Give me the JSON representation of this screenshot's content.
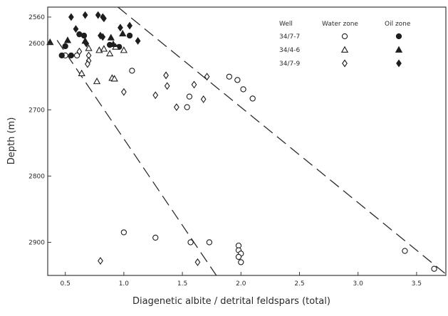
{
  "chart_data": {
    "type": "scatter",
    "xlabel": "Diagenetic albite / detrital feldspars (total)",
    "ylabel": "Depth (m)",
    "xlim": [
      0.35,
      3.75
    ],
    "ylim": [
      2950,
      2545
    ],
    "y_axis_inverted": true,
    "x_ticks": [
      0.5,
      1.0,
      1.5,
      2.0,
      2.5,
      3.0,
      3.5
    ],
    "x_tick_labels": [
      "0.5",
      "1.0",
      "1.5",
      "2.0",
      "2.5",
      "3.0",
      "3.5"
    ],
    "y_ticks": [
      2560,
      2600,
      2700,
      2800,
      2900
    ],
    "y_tick_labels": [
      "2560",
      "2600",
      "2700",
      "2800",
      "2900"
    ],
    "grid": false,
    "legend": {
      "placement": "top-right",
      "well_header": "Well",
      "water_header": "Water zone",
      "oil_header": "Oil zone",
      "rows": [
        {
          "well": "34/7-7",
          "water_marker": "circle-open",
          "oil_marker": "circle-filled"
        },
        {
          "well": "34/4-6",
          "water_marker": "triangle-open",
          "oil_marker": "triangle-filled"
        },
        {
          "well": "34/7-9",
          "water_marker": "diamond-open",
          "oil_marker": "diamond-filled"
        }
      ]
    },
    "series": [
      {
        "well": "34/7-7",
        "zone": "water",
        "marker": "circle-open",
        "points": [
          [
            0.5,
            2618
          ],
          [
            0.6,
            2618
          ],
          [
            1.07,
            2641
          ],
          [
            1.0,
            2885
          ],
          [
            1.27,
            2893
          ],
          [
            1.57,
            2900
          ],
          [
            1.73,
            2900
          ],
          [
            1.98,
            2905
          ],
          [
            1.98,
            2912
          ],
          [
            2.0,
            2917
          ],
          [
            1.98,
            2922
          ],
          [
            2.0,
            2930
          ],
          [
            3.4,
            2913
          ],
          [
            3.65,
            2940
          ],
          [
            1.9,
            2650
          ],
          [
            1.97,
            2655
          ],
          [
            2.02,
            2669
          ],
          [
            2.1,
            2683
          ],
          [
            1.56,
            2680
          ],
          [
            1.54,
            2696
          ]
        ]
      },
      {
        "well": "34/7-7",
        "zone": "oil",
        "marker": "circle-filled",
        "points": [
          [
            0.47,
            2618
          ],
          [
            0.55,
            2618
          ],
          [
            0.62,
            2586
          ],
          [
            0.66,
            2588
          ],
          [
            0.5,
            2604
          ],
          [
            1.05,
            2588
          ],
          [
            0.88,
            2602
          ],
          [
            0.96,
            2605
          ]
        ]
      },
      {
        "well": "34/4-6",
        "zone": "water",
        "marker": "triangle-open",
        "points": [
          [
            0.7,
            2607
          ],
          [
            0.79,
            2610
          ],
          [
            0.83,
            2608
          ],
          [
            0.88,
            2615
          ],
          [
            0.93,
            2605
          ],
          [
            1.0,
            2610
          ],
          [
            0.64,
            2645
          ],
          [
            0.77,
            2657
          ],
          [
            0.9,
            2652
          ],
          [
            0.92,
            2653
          ]
        ]
      },
      {
        "well": "34/4-6",
        "zone": "oil",
        "marker": "triangle-filled",
        "points": [
          [
            0.37,
            2598
          ],
          [
            0.52,
            2595
          ],
          [
            0.67,
            2596
          ],
          [
            0.89,
            2591
          ],
          [
            0.99,
            2585
          ],
          [
            0.91,
            2601
          ]
        ]
      },
      {
        "well": "34/7-9",
        "zone": "water",
        "marker": "diamond-open",
        "points": [
          [
            0.62,
            2612
          ],
          [
            0.7,
            2618
          ],
          [
            0.7,
            2626
          ],
          [
            0.69,
            2631
          ],
          [
            1.0,
            2673
          ],
          [
            1.27,
            2678
          ],
          [
            1.45,
            2696
          ],
          [
            1.36,
            2648
          ],
          [
            1.37,
            2664
          ],
          [
            1.6,
            2662
          ],
          [
            1.71,
            2650
          ],
          [
            1.68,
            2684
          ],
          [
            0.8,
            2928
          ],
          [
            1.63,
            2930
          ]
        ]
      },
      {
        "well": "34/7-9",
        "zone": "oil",
        "marker": "diamond-filled",
        "points": [
          [
            0.55,
            2560
          ],
          [
            0.67,
            2557
          ],
          [
            0.78,
            2557
          ],
          [
            0.82,
            2560
          ],
          [
            0.83,
            2562
          ],
          [
            1.05,
            2573
          ],
          [
            0.82,
            2590
          ],
          [
            0.68,
            2600
          ],
          [
            0.59,
            2578
          ],
          [
            0.8,
            2588
          ],
          [
            1.12,
            2596
          ],
          [
            0.97,
            2576
          ]
        ]
      }
    ],
    "trend_lines": [
      {
        "style": "dashed",
        "x": [
          0.43,
          1.79
        ],
        "y": [
          2595,
          2950
        ]
      },
      {
        "style": "dashed",
        "x": [
          0.95,
          3.75
        ],
        "y": [
          2545,
          2948
        ]
      }
    ]
  }
}
